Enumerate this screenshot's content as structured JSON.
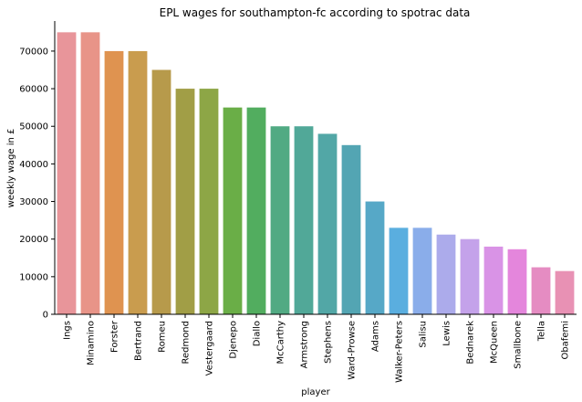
{
  "chart_data": {
    "type": "bar",
    "title": "EPL wages for southampton-fc according to spotrac data",
    "xlabel": "player",
    "ylabel": "weekly wage in £",
    "ylim": [
      0,
      78000
    ],
    "yticks": [
      0,
      10000,
      20000,
      30000,
      40000,
      50000,
      60000,
      70000
    ],
    "grid": false,
    "categories": [
      "Ings",
      "Minamino",
      "Forster",
      "Bertrand",
      "Romeu",
      "Redmond",
      "Vestergaard",
      "Djenepo",
      "Diallo",
      "McCarthy",
      "Armstrong",
      "Stephens",
      "Ward-Prowse",
      "Adams",
      "Walker-Peters",
      "Salisu",
      "Lewis",
      "Bednarek",
      "McQueen",
      "Smallbone",
      "Tella",
      "Obafemi"
    ],
    "values": [
      75000,
      75000,
      70000,
      70000,
      65000,
      60000,
      60000,
      55000,
      55000,
      50000,
      50000,
      48000,
      45000,
      30000,
      23000,
      23000,
      21200,
      20000,
      18000,
      17300,
      12500,
      11500
    ],
    "colors": [
      "#e8959a",
      "#e89488",
      "#df9350",
      "#c99c4e",
      "#b79a4b",
      "#a19e46",
      "#8da646",
      "#6aae47",
      "#52ad5f",
      "#51aa83",
      "#51a898",
      "#52a7a6",
      "#53a5b3",
      "#56a8c7",
      "#5aaedf",
      "#8aadea",
      "#acabeb",
      "#c4a2ea",
      "#d993e6",
      "#e486dc",
      "#e58cc2",
      "#e891b4"
    ]
  }
}
